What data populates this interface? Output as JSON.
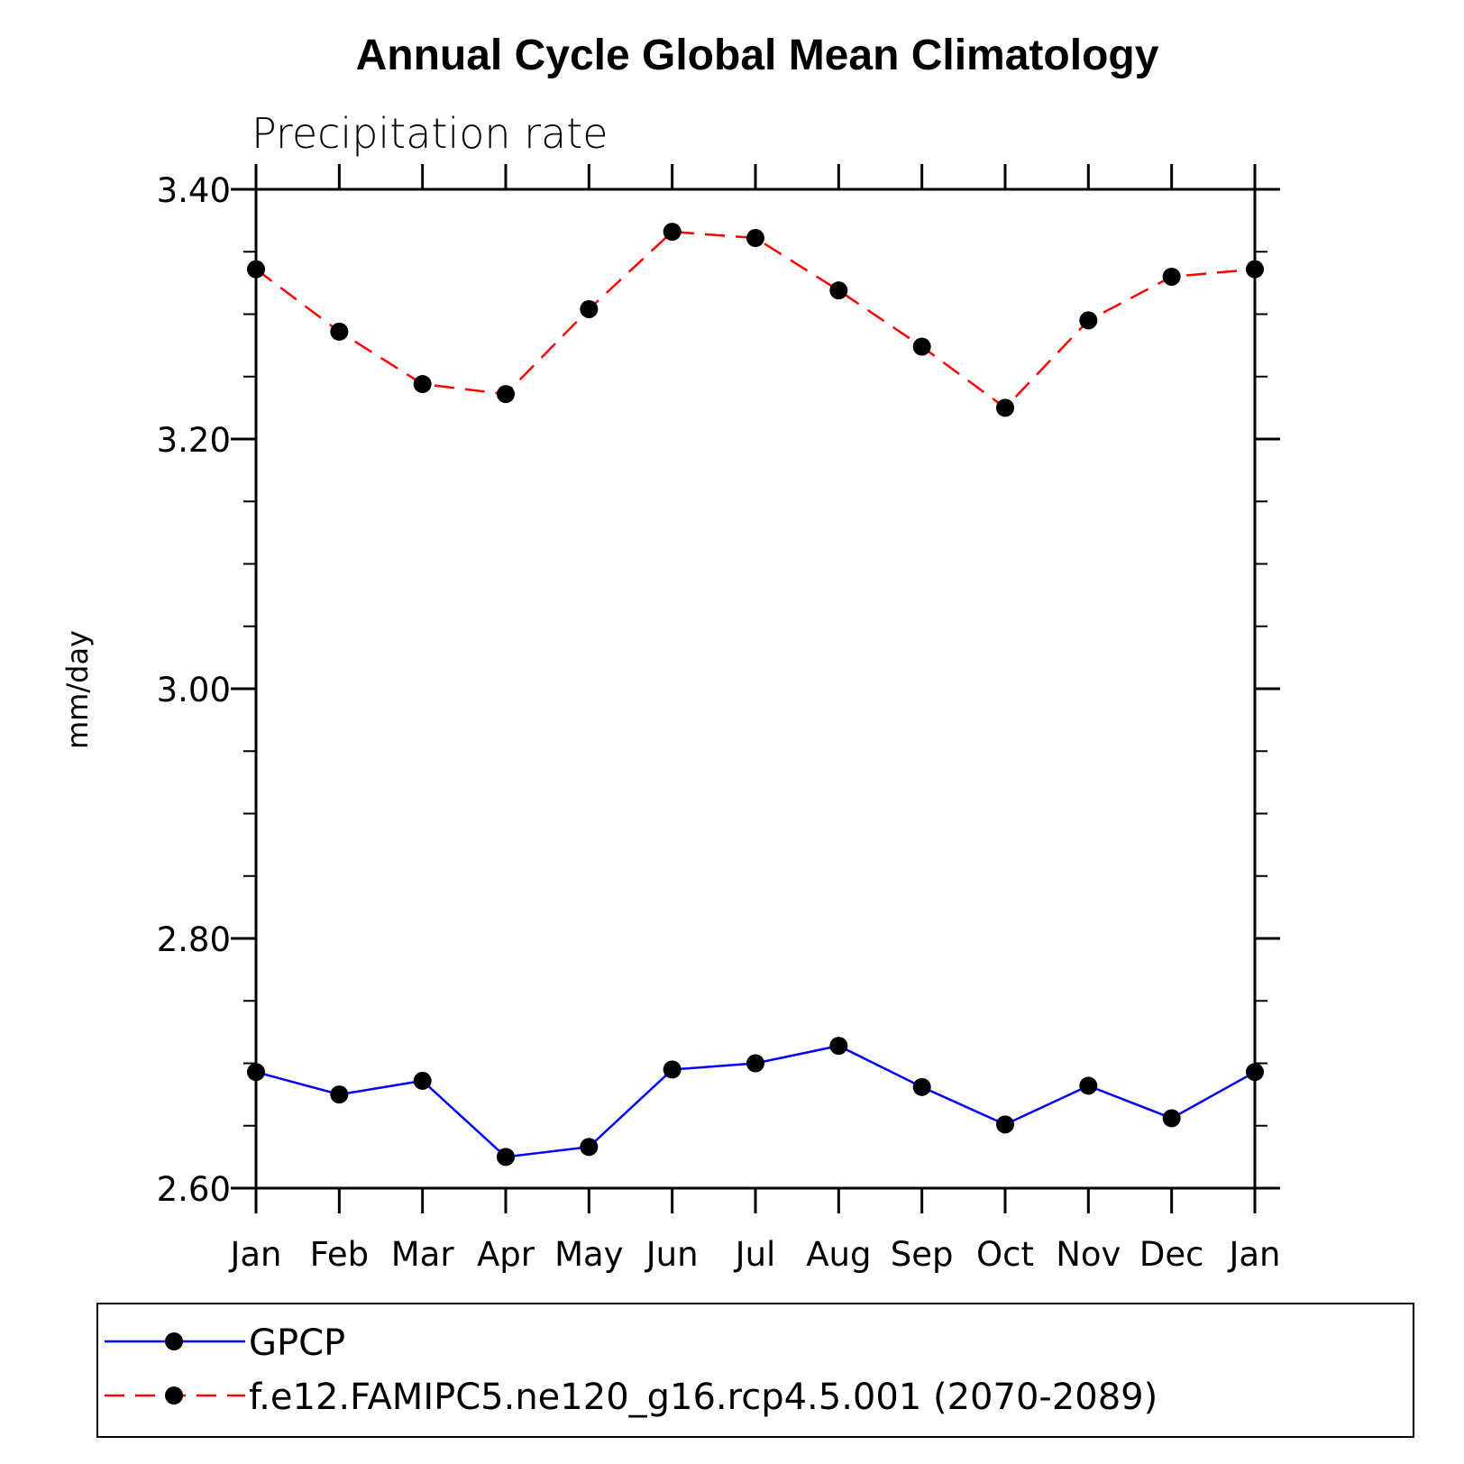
{
  "chart_data": {
    "type": "line",
    "title": "Annual Cycle Global Mean Climatology",
    "subtitle": "Precipitation rate",
    "xlabel": "",
    "ylabel": "mm/day",
    "categories": [
      "Jan",
      "Feb",
      "Mar",
      "Apr",
      "May",
      "Jun",
      "Jul",
      "Aug",
      "Sep",
      "Oct",
      "Nov",
      "Dec",
      "Jan"
    ],
    "ylim": [
      2.6,
      3.4
    ],
    "yticks": [
      2.6,
      2.8,
      3.0,
      3.2,
      3.4
    ],
    "ytick_labels": [
      "2.60",
      "2.80",
      "3.00",
      "3.20",
      "3.40"
    ],
    "yminor_step": 0.05,
    "grid": false,
    "legend_position": "bottom",
    "series": [
      {
        "name": "GPCP",
        "color": "#0000ff",
        "dash": "solid",
        "values": [
          2.693,
          2.675,
          2.686,
          2.625,
          2.633,
          2.695,
          2.7,
          2.714,
          2.681,
          2.651,
          2.682,
          2.656,
          2.693
        ]
      },
      {
        "name": "f.e12.FAMIPC5.ne120_g16.rcp4.5.001 (2070-2089)",
        "color": "#ff0000",
        "dash": "dashed",
        "values": [
          3.336,
          3.286,
          3.244,
          3.236,
          3.304,
          3.366,
          3.361,
          3.319,
          3.274,
          3.225,
          3.295,
          3.33,
          3.336
        ]
      }
    ]
  }
}
